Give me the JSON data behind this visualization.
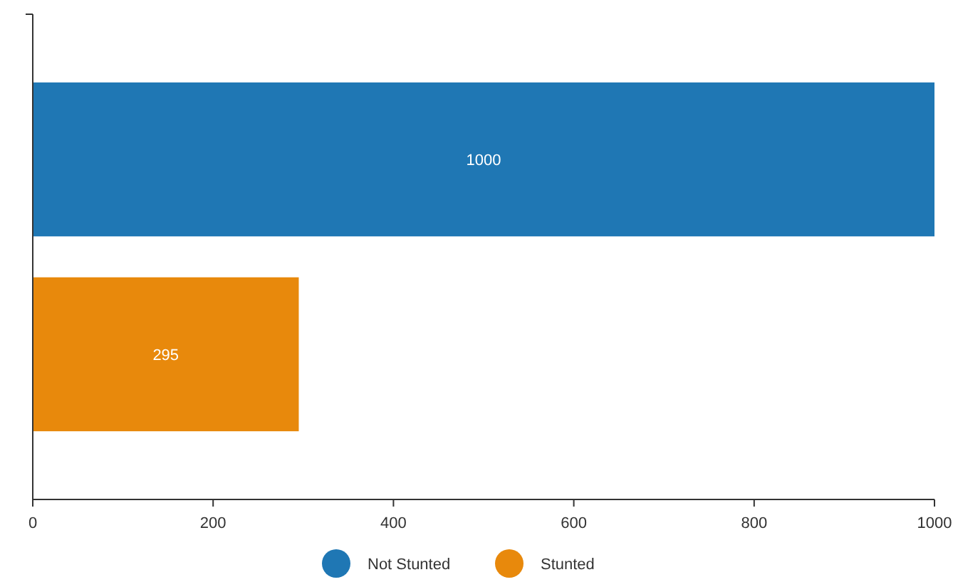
{
  "chart_data": {
    "type": "bar",
    "orientation": "horizontal",
    "categories": [
      null,
      null
    ],
    "series": [
      {
        "name": "Not Stunted",
        "color": "#1f77b4",
        "values": [
          1000,
          null
        ]
      },
      {
        "name": "Stunted",
        "color": "#e8890c",
        "values": [
          null,
          295
        ]
      }
    ],
    "xlim": [
      0,
      1000
    ],
    "xticks": [
      0,
      200,
      400,
      600,
      800,
      1000
    ],
    "data_labels": true,
    "legend": "bottom",
    "grid": false
  }
}
